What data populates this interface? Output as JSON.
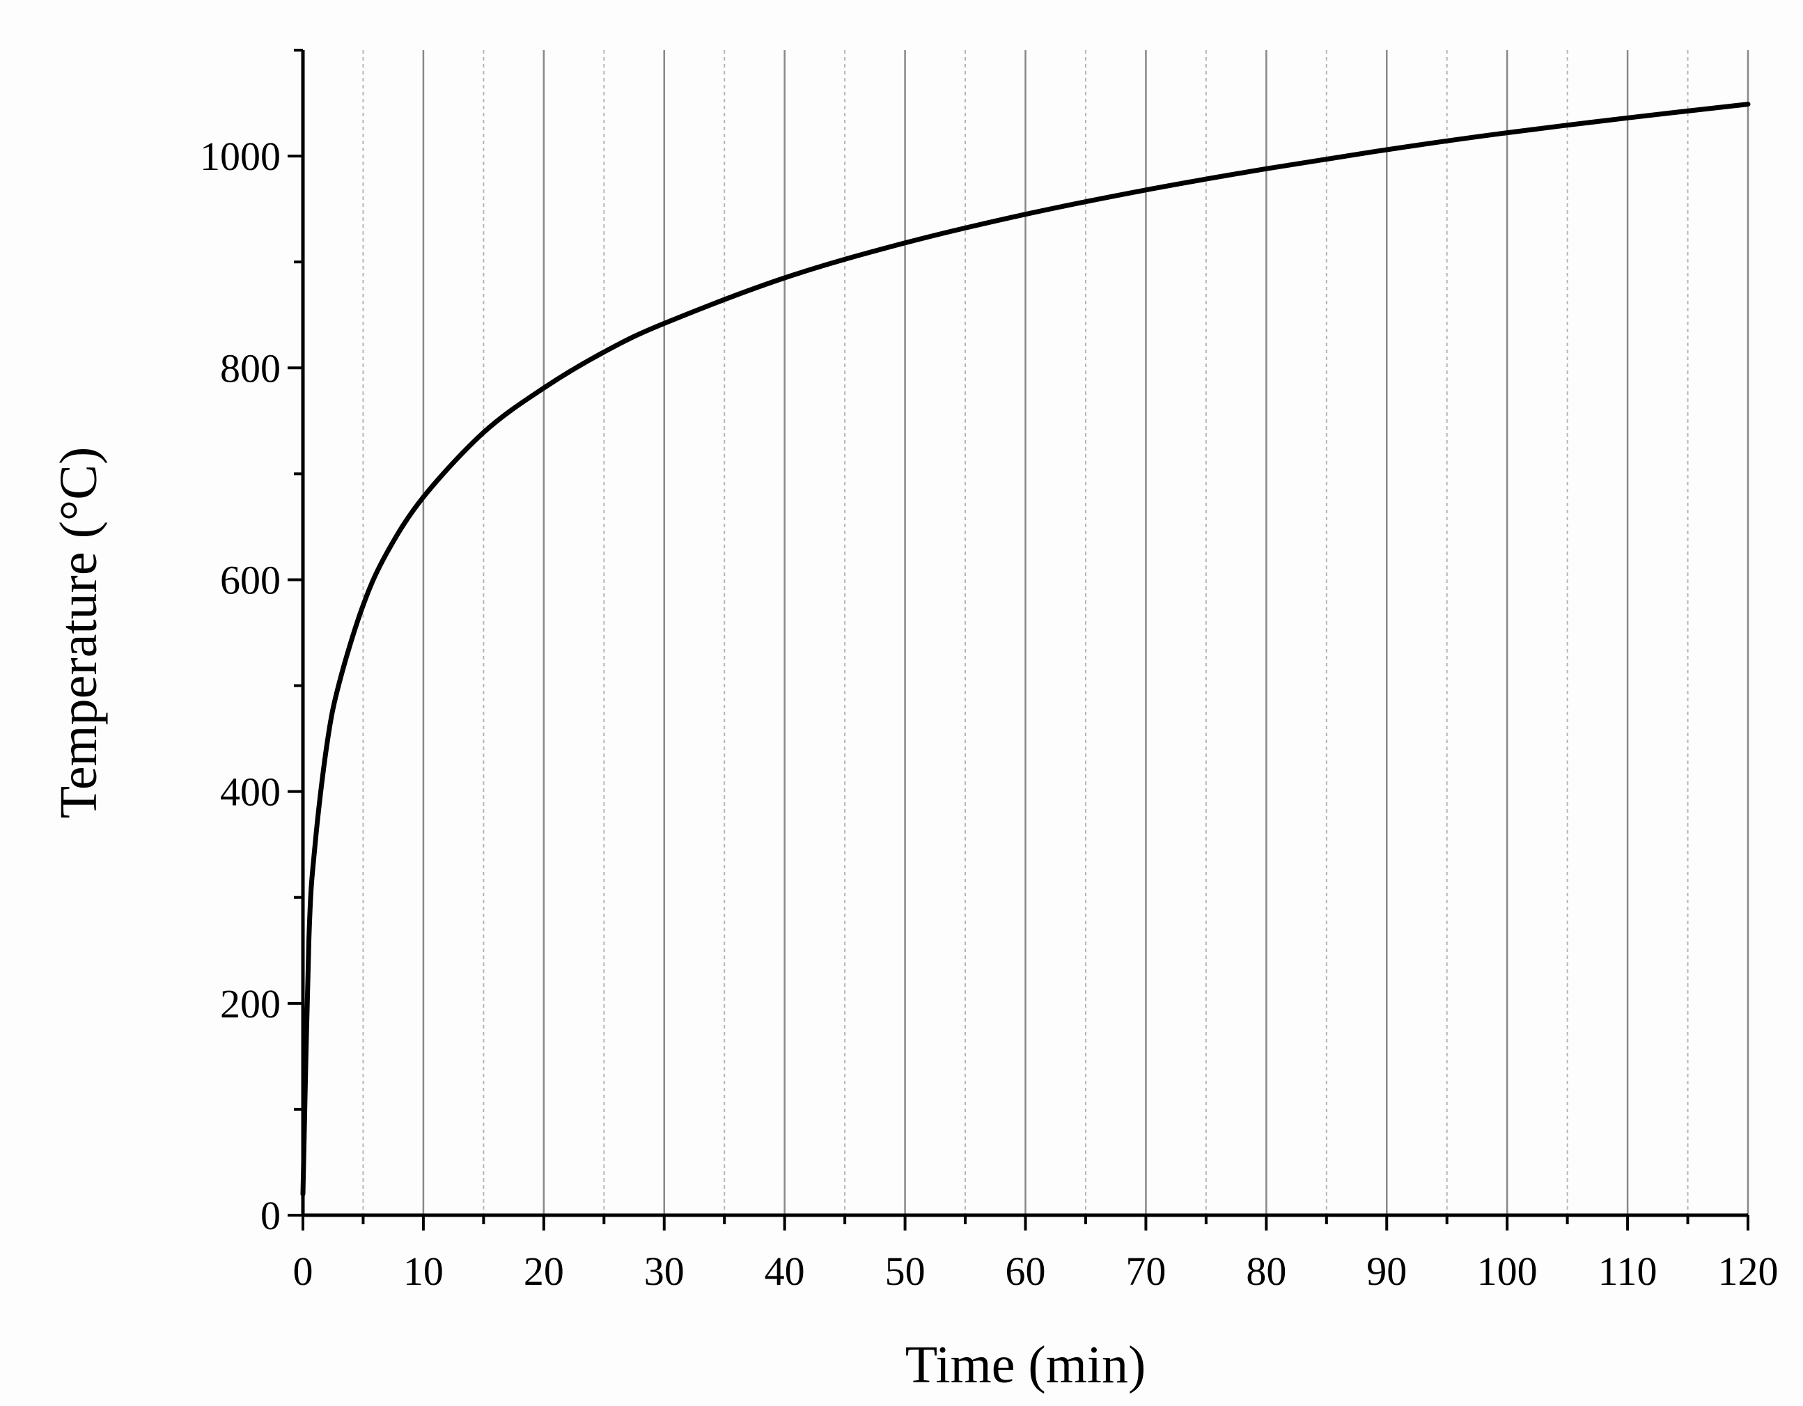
{
  "chart_data": {
    "type": "line",
    "title": "",
    "xlabel": "Time (min)",
    "ylabel": "Temperature (°C)",
    "xlim": [
      0,
      120
    ],
    "ylim": [
      0,
      1100
    ],
    "x_ticks": [
      0,
      10,
      20,
      30,
      40,
      50,
      60,
      70,
      80,
      90,
      100,
      110,
      120
    ],
    "x_tick_labels": [
      "0",
      "10",
      "20",
      "30",
      "40",
      "50",
      "60",
      "70",
      "80",
      "90",
      "100",
      "110",
      "120"
    ],
    "y_ticks": [
      0,
      200,
      400,
      600,
      800,
      1000
    ],
    "y_tick_labels": [
      "0",
      "200",
      "400",
      "600",
      "800",
      "1000"
    ],
    "grid": {
      "major_x": true,
      "minor_x": true,
      "major_y": false
    },
    "series": [
      {
        "name": "Temperature",
        "color": "#000000",
        "x": [
          0,
          0.5,
          1,
          2,
          3,
          5,
          7,
          10,
          15,
          20,
          25,
          30,
          40,
          50,
          60,
          70,
          80,
          90,
          100,
          110,
          120
        ],
        "y": [
          20,
          261,
          349,
          445,
          502,
          576,
          626,
          678,
          739,
          781,
          815,
          842,
          885,
          918,
          945,
          968,
          988,
          1006,
          1022,
          1036,
          1049
        ]
      }
    ]
  }
}
